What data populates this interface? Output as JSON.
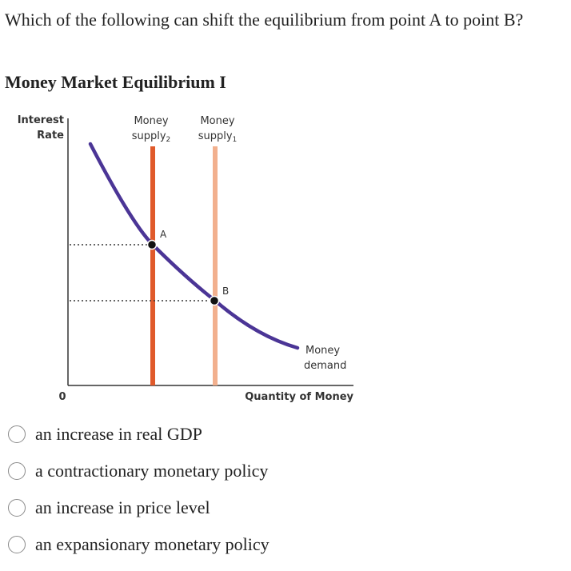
{
  "question": "Which of the following can shift the equilibrium from point A to point B?",
  "figure_title": "Money Market Equilibrium I",
  "diagram": {
    "y_axis_label_line1": "Interest",
    "y_axis_label_line2": "Rate",
    "x_axis_label": "Quantity of Money",
    "origin_label": "0",
    "supply2_label_line1": "Money",
    "supply2_label_line2": "supply",
    "supply2_subscript": "2",
    "supply1_label_line1": "Money",
    "supply1_label_line2": "supply",
    "supply1_subscript": "1",
    "demand_label_line1": "Money",
    "demand_label_line2": "demand",
    "point_a_label": "A",
    "point_b_label": "B",
    "colors": {
      "demand_curve": "#4b3596",
      "supply2": "#e05a2b",
      "supply1": "#f2b08e",
      "axes": "#333333"
    }
  },
  "options": [
    {
      "label": "an increase in real GDP"
    },
    {
      "label": "a contractionary monetary policy"
    },
    {
      "label": "an increase in price level"
    },
    {
      "label": "an expansionary monetary policy"
    }
  ]
}
